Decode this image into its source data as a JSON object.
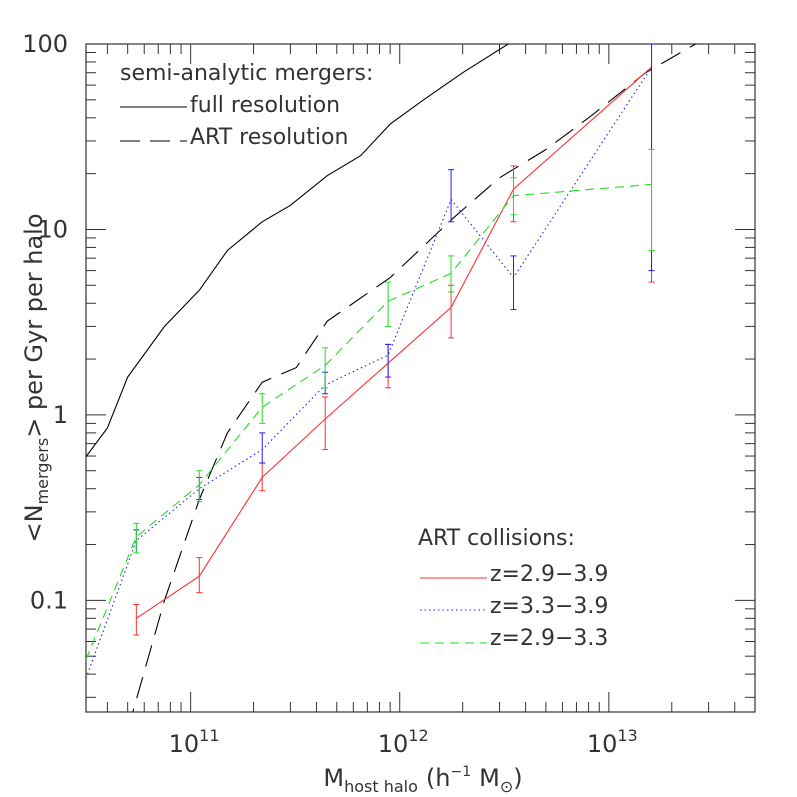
{
  "chart_data": {
    "type": "line",
    "xscale": "log",
    "yscale": "log",
    "xlim": [
      31600000000.0,
      50000000000000.0
    ],
    "ylim": [
      0.025,
      100
    ],
    "xlabel": {
      "main": "M",
      "sub": "host halo",
      "rest": "(h",
      "sup": "−1",
      "unit": "M",
      "unit_sym": "⊙",
      "close": ")"
    },
    "ylabel": {
      "open": "<N",
      "sub": "mergers",
      "rest": "> per Gyr per halo"
    },
    "xtick_labels": [
      {
        "base": "10",
        "exp": "11",
        "value": 100000000000.0
      },
      {
        "base": "10",
        "exp": "12",
        "value": 1000000000000.0
      },
      {
        "base": "10",
        "exp": "13",
        "value": 10000000000000.0
      }
    ],
    "ytick_labels": [
      {
        "text": "100",
        "value": 100
      },
      {
        "text": "10",
        "value": 10
      },
      {
        "text": "1",
        "value": 1
      },
      {
        "text": "0.1",
        "value": 0.1
      }
    ],
    "legend_top": {
      "title": "semi-analytic mergers:",
      "entries": [
        "full resolution",
        "ART resolution"
      ]
    },
    "legend_bottom": {
      "title": "ART collisions:",
      "entries": [
        "z=2.9−3.9",
        "z=3.3−3.9",
        "z=2.9−3.3"
      ]
    },
    "series": [
      {
        "name": "full resolution",
        "color": "#000000",
        "style": "solid",
        "x": [
          30000000000.0,
          40000000000.0,
          50000000000.0,
          75000000000.0,
          110000000000.0,
          150000000000.0,
          220000000000.0,
          300000000000.0,
          450000000000.0,
          650000000000.0,
          900000000000.0,
          1300000000000.0,
          2000000000000.0,
          3300000000000.0
        ],
        "y": [
          0.55,
          0.85,
          1.6,
          3.0,
          4.7,
          7.7,
          11,
          13.5,
          19.5,
          25,
          37,
          50,
          70,
          100
        ]
      },
      {
        "name": "ART resolution",
        "color": "#000000",
        "style": "longdash",
        "x": [
          50000000000.0,
          75000000000.0,
          110000000000.0,
          150000000000.0,
          220000000000.0,
          320000000000.0,
          450000000000.0,
          900000000000.0,
          1800000000000.0,
          3000000000000.0,
          5000000000000.0,
          8000000000000.0,
          15000000000000.0,
          26000000000000.0
        ],
        "y": [
          0.02,
          0.1,
          0.35,
          0.8,
          1.5,
          1.8,
          3.2,
          5.5,
          11.5,
          19,
          27,
          40,
          70,
          100
        ]
      },
      {
        "name": "z=2.9−3.9",
        "color": "#ff3030",
        "style": "solid",
        "x": [
          55000000000.0,
          110000000000.0,
          220000000000.0,
          440000000000.0,
          880000000000.0,
          1760000000000.0,
          3500000000000.0,
          16000000000000.0
        ],
        "y": [
          0.08,
          0.135,
          0.46,
          0.95,
          1.9,
          3.8,
          16.5,
          75
        ],
        "err_lo": [
          0.065,
          0.11,
          0.39,
          0.65,
          1.4,
          2.6,
          11,
          5.2
        ],
        "err_hi": [
          0.095,
          0.17,
          0.55,
          1.25,
          2.4,
          5.0,
          22,
          100
        ]
      },
      {
        "name": "z=3.3−3.9",
        "color": "#2020ff",
        "style": "dotted",
        "x": [
          31600000000.0,
          55000000000.0,
          110000000000.0,
          220000000000.0,
          440000000000.0,
          880000000000.0,
          1760000000000.0,
          3500000000000.0,
          16000000000000.0
        ],
        "y": [
          0.038,
          0.21,
          0.4,
          0.65,
          1.45,
          2.1,
          14.5,
          5.5,
          75
        ],
        "err_lo": [
          null,
          0.18,
          0.35,
          0.55,
          1.3,
          1.6,
          11,
          3.7,
          6.0
        ],
        "err_hi": [
          null,
          0.24,
          0.46,
          0.8,
          1.7,
          2.4,
          21,
          7.2,
          100
        ]
      },
      {
        "name": "z=2.9−3.3",
        "color": "#22dd22",
        "style": "dashed",
        "x": [
          31600000000.0,
          55000000000.0,
          110000000000.0,
          220000000000.0,
          440000000000.0,
          880000000000.0,
          1760000000000.0,
          3500000000000.0,
          16000000000000.0
        ],
        "y": [
          0.048,
          0.22,
          0.42,
          1.1,
          1.85,
          4.1,
          5.8,
          15.2,
          17.5
        ],
        "err_lo": [
          null,
          0.18,
          0.34,
          0.9,
          1.4,
          3.0,
          4.6,
          12,
          7.7
        ],
        "err_hi": [
          null,
          0.26,
          0.5,
          1.3,
          2.3,
          5.2,
          7.2,
          19,
          27
        ]
      }
    ]
  }
}
